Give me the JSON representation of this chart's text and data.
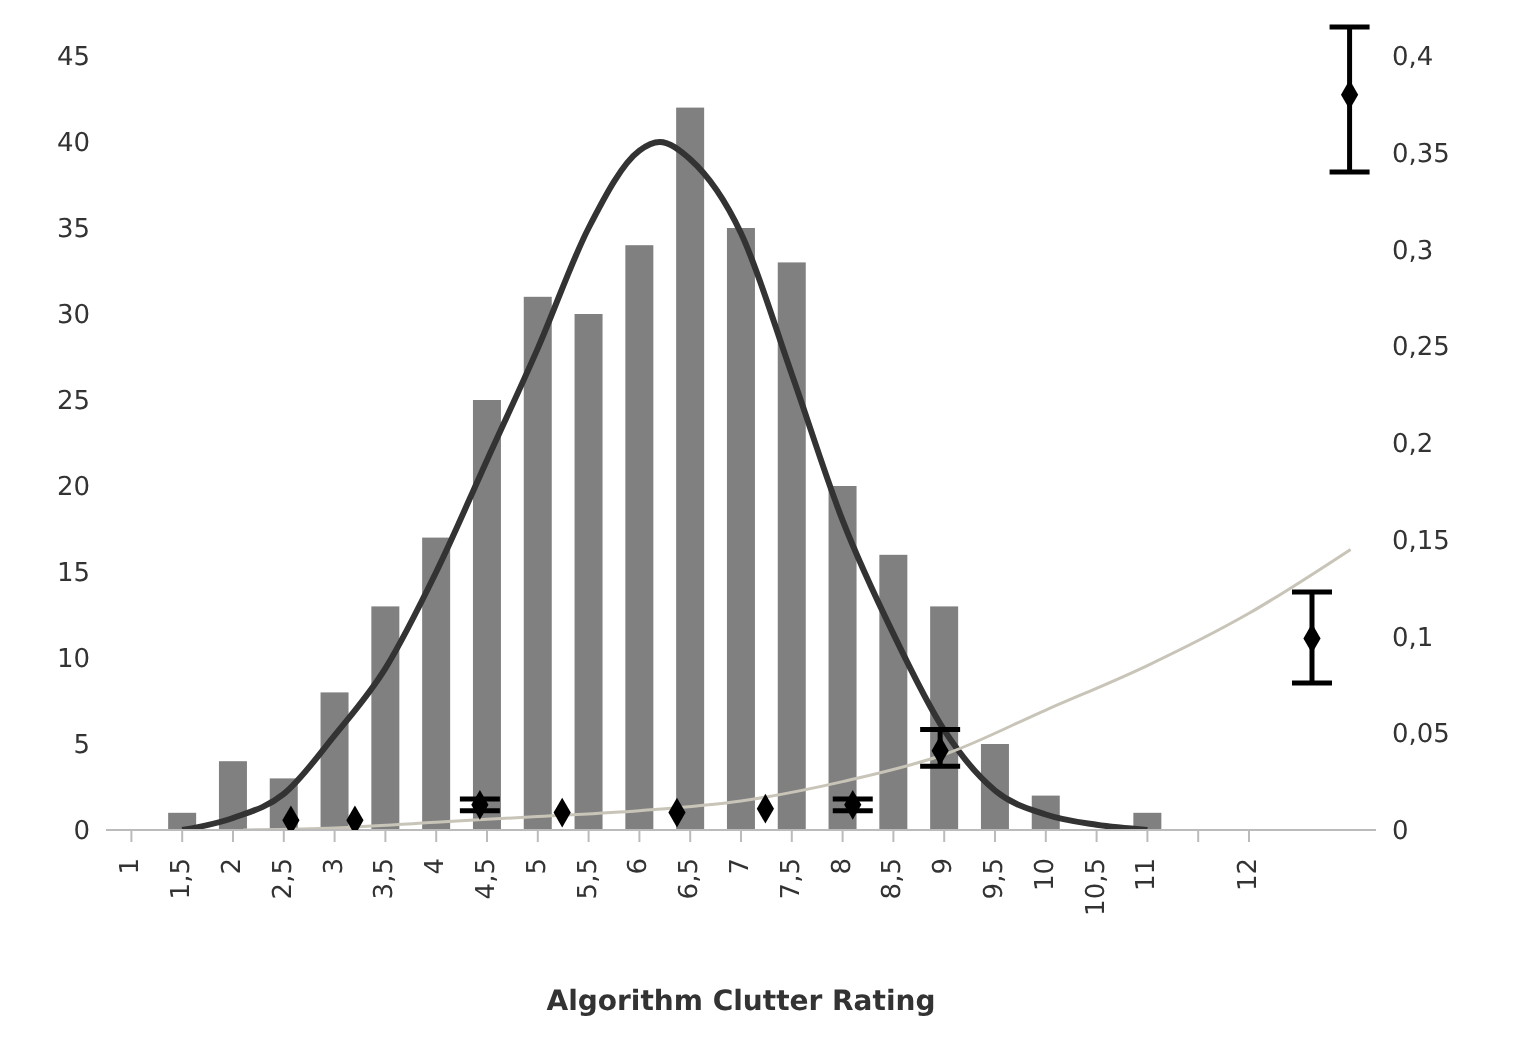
{
  "chart_data": {
    "type": "bar",
    "xlabel": "Algorithm Clutter Rating",
    "grid": false,
    "legend": false,
    "x": [
      1.5,
      2,
      2.5,
      3,
      3.5,
      4,
      4.5,
      5,
      5.5,
      6,
      6.5,
      7,
      7.5,
      8,
      8.5,
      9,
      9.5,
      10,
      10.5,
      11
    ],
    "xlim": [
      0.75,
      13.25
    ],
    "xticks": [
      1,
      {
        "value": 1.5,
        "label": "1,5"
      },
      2,
      {
        "value": 2.5,
        "label": "2,5"
      },
      3,
      {
        "value": 3.5,
        "label": "3,5"
      },
      4,
      {
        "value": 4.5,
        "label": "4,5"
      },
      5,
      {
        "value": 5.5,
        "label": "5,5"
      },
      6,
      {
        "value": 6.5,
        "label": "6,5"
      },
      7,
      {
        "value": 7.5,
        "label": "7,5"
      },
      8,
      {
        "value": 8.5,
        "label": "8,5"
      },
      9,
      {
        "value": 9.5,
        "label": "9,5"
      },
      10,
      {
        "value": 10.5,
        "label": "10,5"
      },
      11,
      {
        "value": 11.5,
        "label": null
      },
      12
    ],
    "ylim": [
      0,
      45
    ],
    "yticks": [
      0,
      5,
      10,
      15,
      20,
      25,
      30,
      35,
      40,
      45
    ],
    "y2lim": [
      0,
      0.4
    ],
    "y2ticks": [
      0,
      {
        "value": 0.05,
        "label": "0,05"
      },
      {
        "value": 0.1,
        "label": "0,1"
      },
      {
        "value": 0.15,
        "label": "0,15"
      },
      {
        "value": 0.2,
        "label": "0,2"
      },
      {
        "value": 0.25,
        "label": "0,25"
      },
      {
        "value": 0.3,
        "label": "0,3"
      },
      {
        "value": 0.35,
        "label": "0,35"
      },
      {
        "value": 0.4,
        "label": "0,4"
      }
    ],
    "series": [
      {
        "color": "#808080",
        "values": [
          1,
          4,
          3,
          8,
          13,
          17,
          25,
          31,
          30,
          34,
          42,
          35,
          33,
          20,
          16,
          13,
          5,
          2,
          null,
          1
        ]
      },
      {
        "type": "line",
        "color": "#333333",
        "x": [
          1.5,
          2,
          2.5,
          3,
          3.5,
          4,
          4.5,
          5,
          5.5,
          6,
          6.2,
          6.5,
          7,
          7.5,
          8,
          8.5,
          9,
          9.5,
          10,
          10.5,
          11
        ],
        "values": [
          0,
          0.7,
          2.1,
          5.5,
          9.4,
          15,
          21.5,
          28,
          35,
          39.5,
          40,
          39,
          34.7,
          26.5,
          18,
          11.4,
          5.8,
          2.3,
          0.9,
          0.3,
          0
        ]
      },
      {
        "type": "line",
        "axis": "y2",
        "color": "#c8c4b8",
        "x": [
          2.1,
          3,
          4,
          5,
          6,
          7,
          8,
          9,
          10,
          11,
          12,
          13
        ],
        "values": [
          0,
          0.001,
          0.004,
          0.007,
          0.01,
          0.015,
          0.025,
          0.039,
          0.062,
          0.085,
          0.112,
          0.145
        ]
      },
      {
        "type": "scatter",
        "axis": "y2",
        "marker": "diamond",
        "color": "#000000",
        "x": [
          2.57,
          3.2,
          4.43,
          5.24,
          6.37,
          7.24,
          8.1,
          8.96,
          12.62,
          12.99
        ],
        "values": [
          0.005,
          0.005,
          0.013,
          0.009,
          0.009,
          0.011,
          0.013,
          0.041,
          0.099,
          0.38
        ],
        "errors": [
          null,
          null,
          0.003,
          null,
          null,
          null,
          0.003,
          [
            0.033,
            0.052
          ],
          [
            0.076,
            0.123
          ],
          [
            0.34,
            0.415
          ]
        ]
      }
    ]
  }
}
